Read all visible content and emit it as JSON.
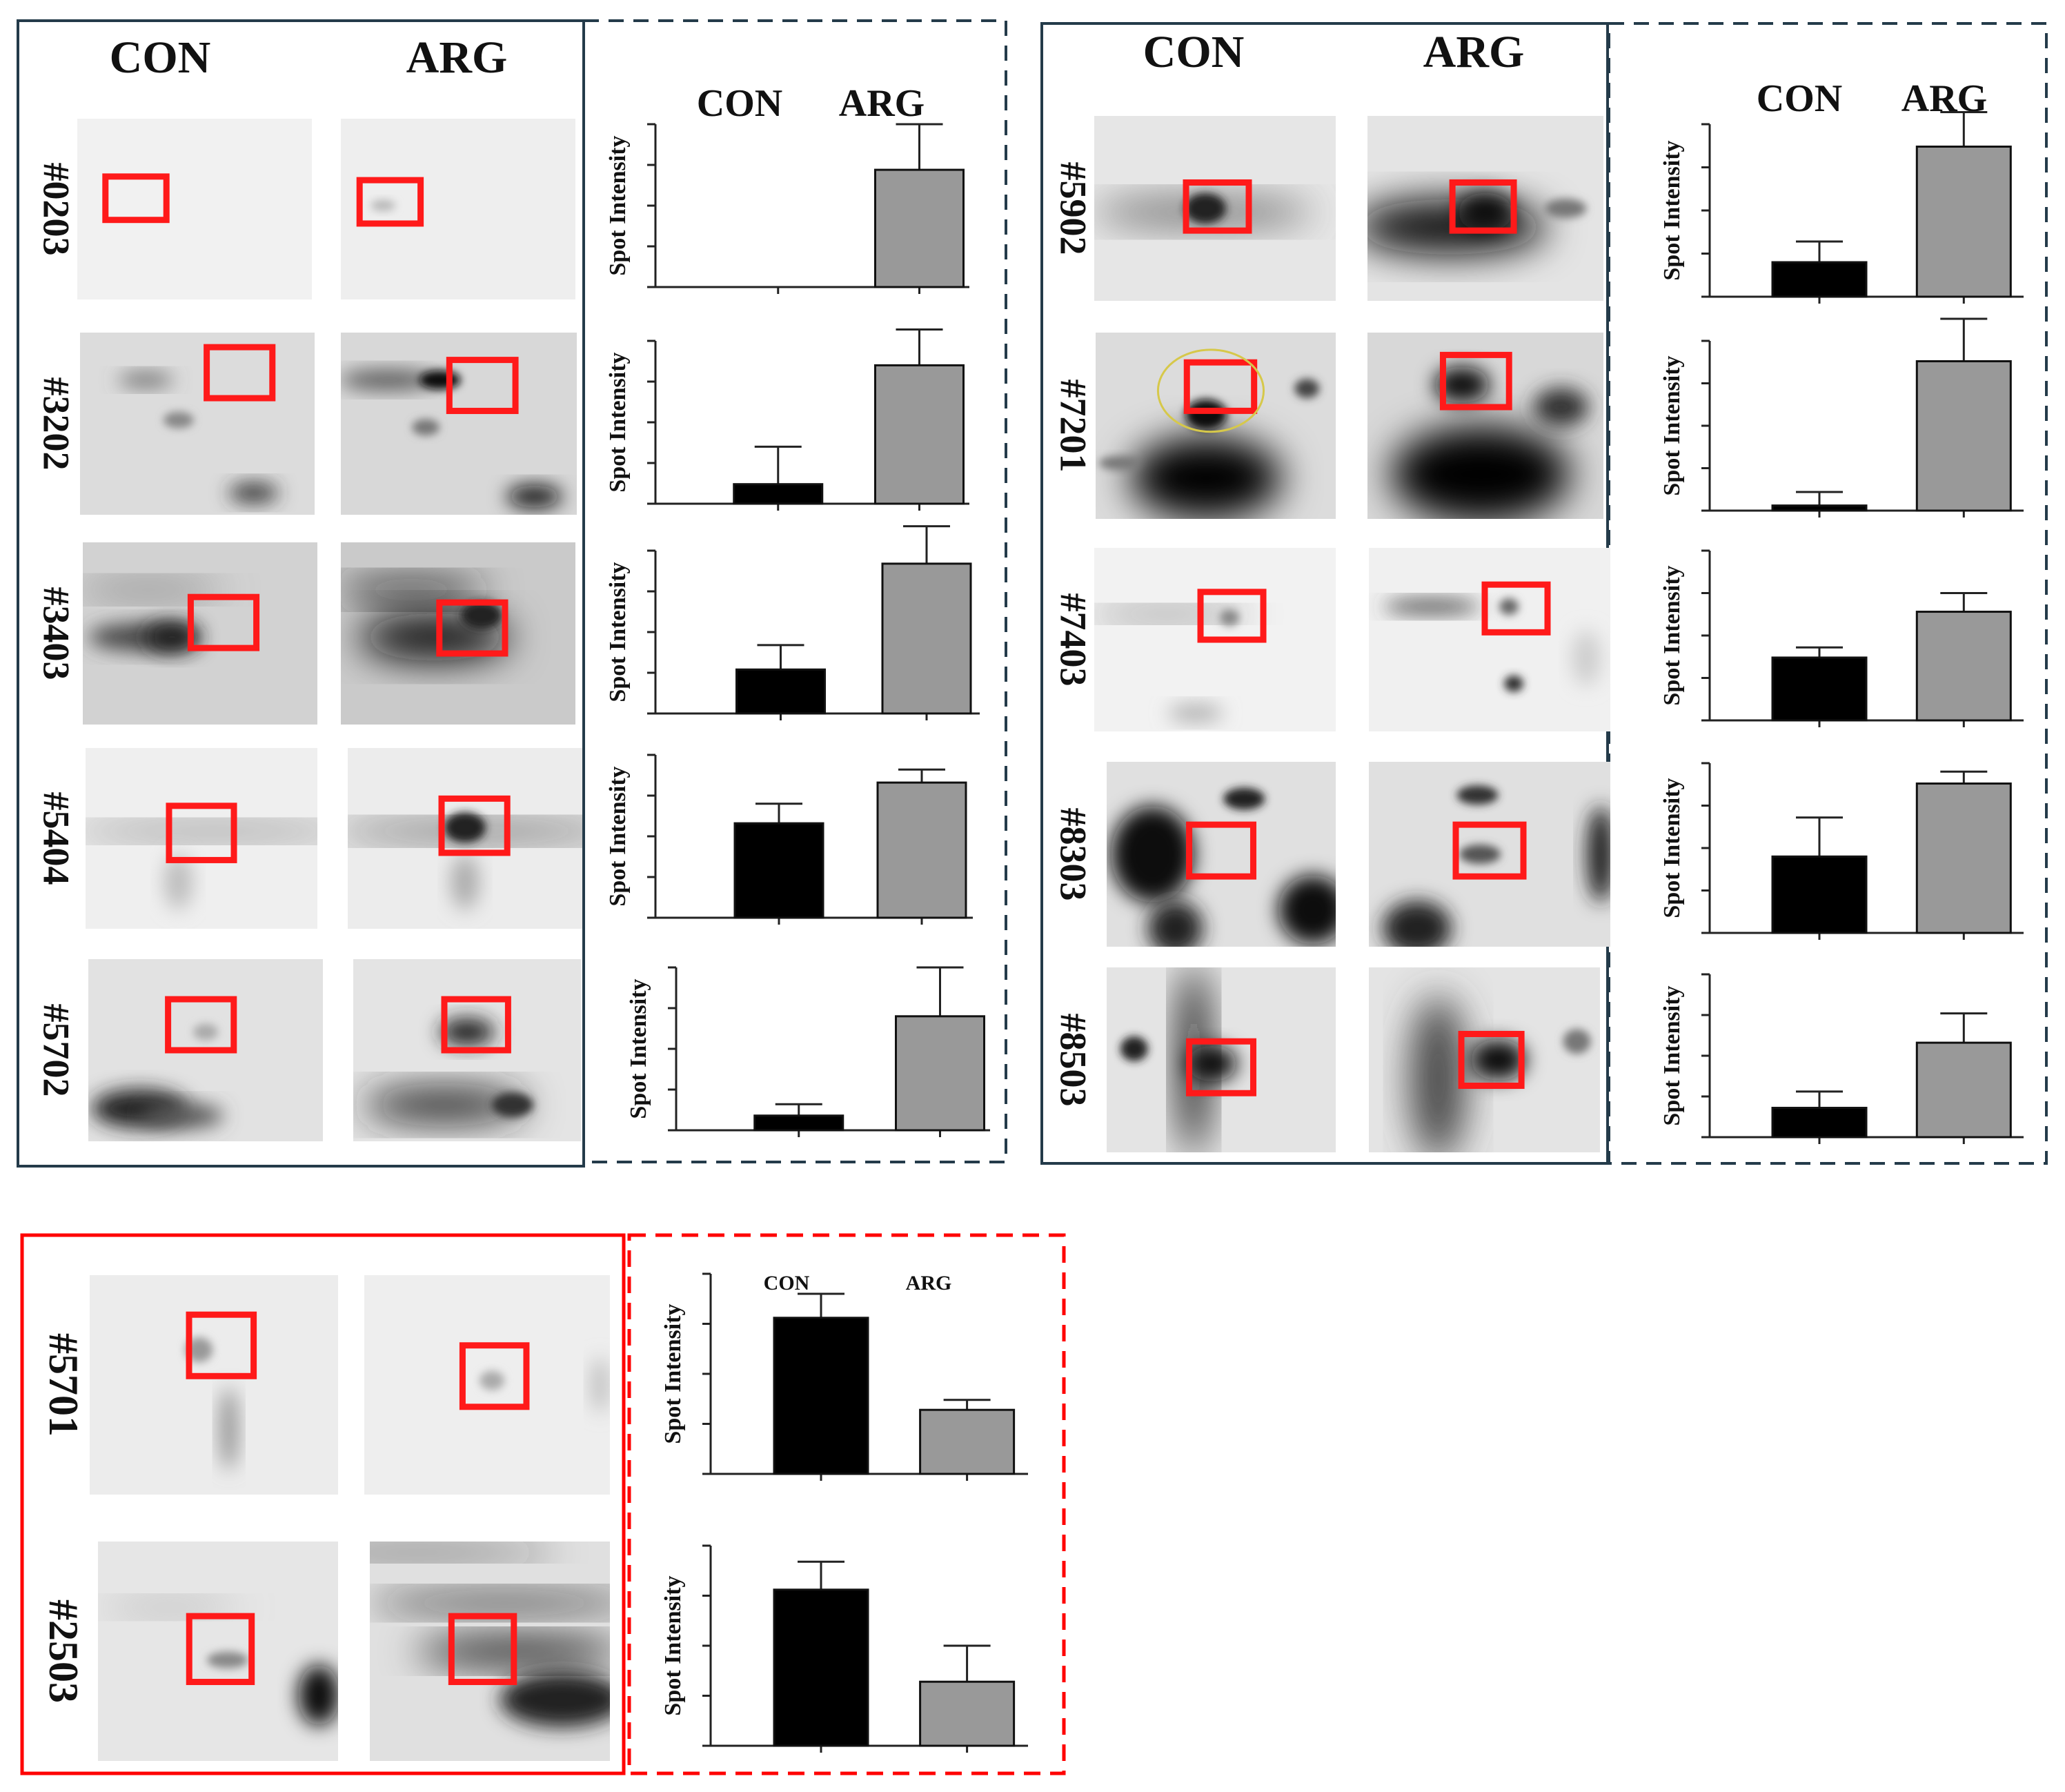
{
  "groups": [
    {
      "id": "left",
      "con_label": "CON",
      "arg_label": "ARG",
      "ylabel": "Spot Intensity",
      "colors": {
        "panel_border": "#243b4a",
        "con_bar": "#000000",
        "arg_bar": "#999999"
      },
      "spots": [
        {
          "id": "#0203",
          "con": 0,
          "con_err": 0,
          "arg": 72,
          "arg_err": 28
        },
        {
          "id": "#3202",
          "con": 12,
          "con_err": 23,
          "arg": 85,
          "arg_err": 22
        },
        {
          "id": "#3403",
          "con": 27,
          "con_err": 15,
          "arg": 92,
          "arg_err": 23
        },
        {
          "id": "#5404",
          "con": 58,
          "con_err": 12,
          "arg": 83,
          "arg_err": 8
        },
        {
          "id": "#5702",
          "con": 9,
          "con_err": 7,
          "arg": 70,
          "arg_err": 30
        }
      ]
    },
    {
      "id": "right",
      "con_label": "CON",
      "arg_label": "ARG",
      "ylabel": "Spot Intensity",
      "colors": {
        "panel_border": "#243b4a",
        "con_bar": "#000000",
        "arg_bar": "#999999"
      },
      "spots": [
        {
          "id": "#5902",
          "con": 20,
          "con_err": 12,
          "arg": 87,
          "arg_err": 20
        },
        {
          "id": "#7201",
          "con": 3,
          "con_err": 8,
          "arg": 88,
          "arg_err": 25
        },
        {
          "id": "#7403",
          "con": 37,
          "con_err": 6,
          "arg": 64,
          "arg_err": 11
        },
        {
          "id": "#8303",
          "con": 45,
          "con_err": 23,
          "arg": 88,
          "arg_err": 7
        },
        {
          "id": "#8503",
          "con": 18,
          "con_err": 10,
          "arg": 58,
          "arg_err": 18
        }
      ]
    },
    {
      "id": "bottom",
      "con_label": "CON",
      "arg_label": "ARG",
      "ylabel": "Spot Intensity",
      "colors": {
        "panel_border": "#ff0000",
        "con_bar": "#000000",
        "arg_bar": "#999999"
      },
      "spots": [
        {
          "id": "#5701",
          "con": 78,
          "con_err": 12,
          "arg": 32,
          "arg_err": 5
        },
        {
          "id": "#2503",
          "con": 78,
          "con_err": 14,
          "arg": 32,
          "arg_err": 18
        }
      ]
    }
  ],
  "chart_data": [
    {
      "type": "bar",
      "title": "#0203",
      "categories": [
        "CON",
        "ARG"
      ],
      "values": [
        0,
        72
      ],
      "errors": [
        0,
        28
      ],
      "xlabel": "",
      "ylabel": "Spot Intensity"
    },
    {
      "type": "bar",
      "title": "#3202",
      "categories": [
        "CON",
        "ARG"
      ],
      "values": [
        12,
        85
      ],
      "errors": [
        23,
        22
      ],
      "xlabel": "",
      "ylabel": "Spot Intensity"
    },
    {
      "type": "bar",
      "title": "#3403",
      "categories": [
        "CON",
        "ARG"
      ],
      "values": [
        27,
        92
      ],
      "errors": [
        15,
        23
      ],
      "xlabel": "",
      "ylabel": "Spot Intensity"
    },
    {
      "type": "bar",
      "title": "#5404",
      "categories": [
        "CON",
        "ARG"
      ],
      "values": [
        58,
        83
      ],
      "errors": [
        12,
        8
      ],
      "xlabel": "",
      "ylabel": "Spot Intensity"
    },
    {
      "type": "bar",
      "title": "#5702",
      "categories": [
        "CON",
        "ARG"
      ],
      "values": [
        9,
        70
      ],
      "errors": [
        7,
        30
      ],
      "xlabel": "",
      "ylabel": "Spot Intensity"
    },
    {
      "type": "bar",
      "title": "#5902",
      "categories": [
        "CON",
        "ARG"
      ],
      "values": [
        20,
        87
      ],
      "errors": [
        12,
        20
      ],
      "xlabel": "",
      "ylabel": "Spot Intensity"
    },
    {
      "type": "bar",
      "title": "#7201",
      "categories": [
        "CON",
        "ARG"
      ],
      "values": [
        3,
        88
      ],
      "errors": [
        8,
        25
      ],
      "xlabel": "",
      "ylabel": "Spot Intensity"
    },
    {
      "type": "bar",
      "title": "#7403",
      "categories": [
        "CON",
        "ARG"
      ],
      "values": [
        37,
        64
      ],
      "errors": [
        6,
        11
      ],
      "xlabel": "",
      "ylabel": "Spot Intensity"
    },
    {
      "type": "bar",
      "title": "#8303",
      "categories": [
        "CON",
        "ARG"
      ],
      "values": [
        45,
        88
      ],
      "errors": [
        23,
        7
      ],
      "xlabel": "",
      "ylabel": "Spot Intensity"
    },
    {
      "type": "bar",
      "title": "#8503",
      "categories": [
        "CON",
        "ARG"
      ],
      "values": [
        18,
        58
      ],
      "errors": [
        10,
        18
      ],
      "xlabel": "",
      "ylabel": "Spot Intensity"
    },
    {
      "type": "bar",
      "title": "#5701",
      "categories": [
        "CON",
        "ARG"
      ],
      "values": [
        78,
        32
      ],
      "errors": [
        12,
        5
      ],
      "xlabel": "",
      "ylabel": "Spot Intensity"
    },
    {
      "type": "bar",
      "title": "#2503",
      "categories": [
        "CON",
        "ARG"
      ],
      "values": [
        78,
        32
      ],
      "errors": [
        14,
        18
      ],
      "xlabel": "",
      "ylabel": "Spot Intensity"
    }
  ]
}
